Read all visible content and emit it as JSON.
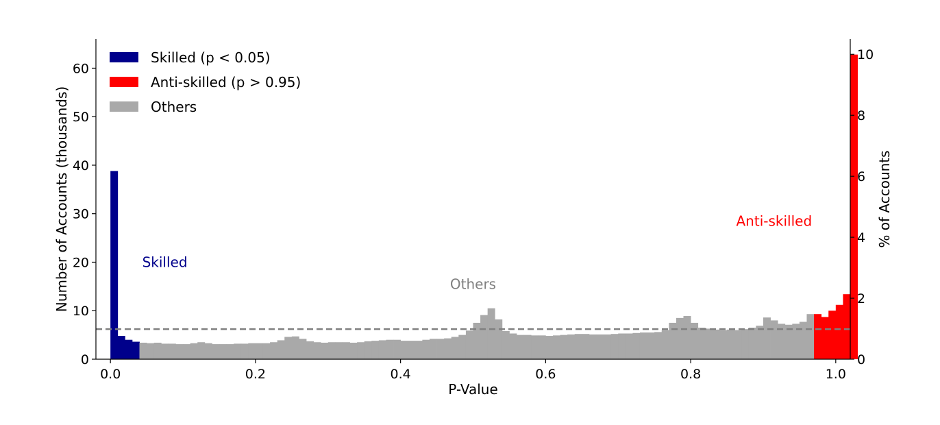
{
  "chart_data": {
    "type": "bar",
    "xlabel": "P-Value",
    "ylabel": "Number of Accounts (thousands)",
    "ylabel_right": "% of Accounts",
    "xlim": [
      -0.02,
      1.02
    ],
    "ylim": [
      0,
      66
    ],
    "ylim_right": [
      0,
      10.5
    ],
    "x_ticks": [
      "0.0",
      "0.2",
      "0.4",
      "0.6",
      "0.8",
      "1.0"
    ],
    "y_ticks": [
      "0",
      "10",
      "20",
      "30",
      "40",
      "50",
      "60"
    ],
    "y_ticks_right": [
      "0",
      "2",
      "4",
      "6",
      "8",
      "10"
    ],
    "bin_width": 0.01,
    "values": [
      38.8,
      4.8,
      4.0,
      3.6,
      3.4,
      3.3,
      3.4,
      3.2,
      3.2,
      3.1,
      3.1,
      3.3,
      3.5,
      3.3,
      3.1,
      3.1,
      3.1,
      3.2,
      3.2,
      3.3,
      3.3,
      3.3,
      3.5,
      3.9,
      4.6,
      4.7,
      4.2,
      3.7,
      3.5,
      3.4,
      3.5,
      3.5,
      3.5,
      3.4,
      3.5,
      3.7,
      3.8,
      3.9,
      4.0,
      4.0,
      3.8,
      3.8,
      3.8,
      4.0,
      4.2,
      4.2,
      4.3,
      4.6,
      5.0,
      5.9,
      7.5,
      9.1,
      10.5,
      8.2,
      5.8,
      5.3,
      5.0,
      5.0,
      4.9,
      4.9,
      4.8,
      4.9,
      5.0,
      5.1,
      5.2,
      5.2,
      5.1,
      5.1,
      5.1,
      5.2,
      5.3,
      5.3,
      5.4,
      5.5,
      5.5,
      5.6,
      6.0,
      7.5,
      8.5,
      8.9,
      7.5,
      6.5,
      6.3,
      6.1,
      6.0,
      6.1,
      6.0,
      6.2,
      6.5,
      6.9,
      8.6,
      8.0,
      7.3,
      7.1,
      7.3,
      7.7,
      9.3,
      9.3,
      8.7,
      10.0,
      11.2,
      13.4,
      62.8
    ],
    "groups": [
      {
        "name": "Skilled (p < 0.05)",
        "color": "#00008b",
        "bins": [
          0,
          3
        ]
      },
      {
        "name": "Others",
        "color": "#a9a9a9",
        "bins": [
          4,
          96
        ]
      },
      {
        "name": "Anti-skilled (p > 0.95)",
        "color": "#ff0000",
        "bins": [
          97,
          102
        ]
      }
    ],
    "reference_line": {
      "y": 6.2,
      "style": "dashed",
      "color": "#808080"
    },
    "legend": {
      "placement": "top-left",
      "entries": [
        {
          "label": "Skilled (p < 0.05)",
          "color": "#00008b"
        },
        {
          "label": "Anti-skilled (p > 0.95)",
          "color": "#ff0000"
        },
        {
          "label": "Others",
          "color": "#a9a9a9"
        }
      ]
    },
    "annotations": [
      {
        "text": "Skilled",
        "x": 0.075,
        "y": 19,
        "color": "#00008b"
      },
      {
        "text": "Others",
        "x": 0.5,
        "y": 14.5,
        "color": "#808080"
      },
      {
        "text": "Anti-skilled",
        "x": 0.915,
        "y": 27.5,
        "color": "#ff0000"
      }
    ],
    "grid": false
  }
}
